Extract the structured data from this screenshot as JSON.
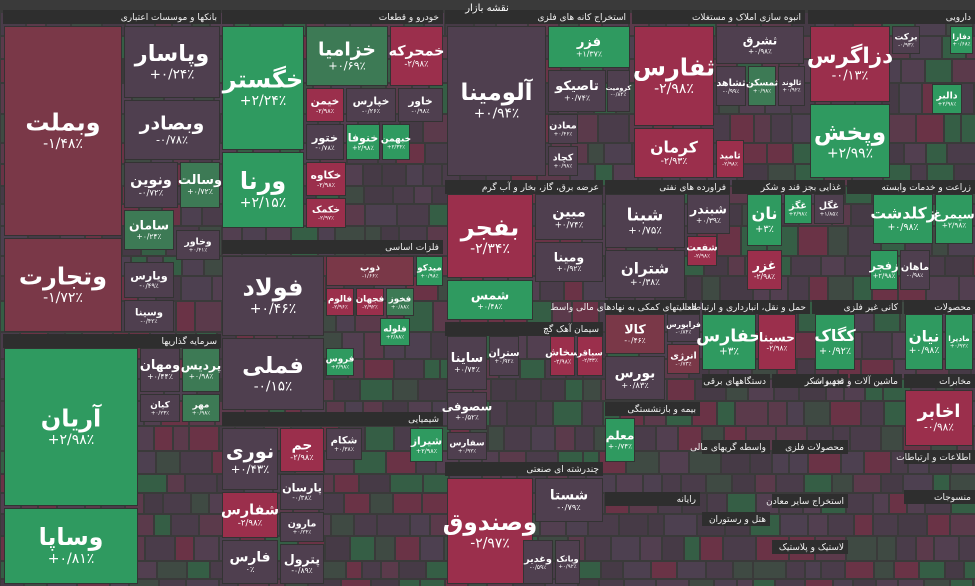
{
  "title": "نقشه بازار",
  "sectors": [
    {
      "name": "بانکها و موسسات اعتباری",
      "tiles": [
        {
          "symbol": "وبملت",
          "change": "-۱/۴۸٪",
          "color": "#7a3848"
        },
        {
          "symbol": "وتجارت",
          "change": "-۱/۷۲٪",
          "color": "#7a3848"
        },
        {
          "symbol": "وپاسار",
          "change": "+۰/۲۴٪",
          "color": "#4f3f4f"
        },
        {
          "symbol": "وبصادر",
          "change": "-۰/۷۸٪",
          "color": "#4f3f4f"
        },
        {
          "symbol": "ونوین",
          "change": "-۰/۷۲٪",
          "color": "#4f3f4f"
        },
        {
          "symbol": "وسالت",
          "change": "+۰/۷۲٪",
          "color": "#3d7a55"
        },
        {
          "symbol": "سامان",
          "change": "+۰/۲۴٪",
          "color": "#3d7a55"
        },
        {
          "symbol": "وخاور",
          "change": "+۰/۴۱٪",
          "color": "#4f3f4f"
        },
        {
          "symbol": "ویارس",
          "change": "-۰/۴۹٪",
          "color": "#4f3f4f"
        },
        {
          "symbol": "وسینا",
          "change": "-۰/۴۲٪",
          "color": "#4f3f4f"
        }
      ]
    },
    {
      "name": "سرمایه گذاریها",
      "tiles": [
        {
          "symbol": "آریان",
          "change": "+۲/۹۸٪",
          "color": "#2f9a60"
        },
        {
          "symbol": "وساپا",
          "change": "+۰/۸۱٪",
          "color": "#2f9a60"
        },
        {
          "symbol": "ومهان",
          "change": "+۰/۴۴٪",
          "color": "#4f3f4f"
        },
        {
          "symbol": "پردیس",
          "change": "+۰/۹۸٪",
          "color": "#3d7a55"
        },
        {
          "symbol": "کیان",
          "change": "+۰/۲۳٪",
          "color": "#4f3f4f"
        },
        {
          "symbol": "مهر",
          "change": "+۰/۹۸٪",
          "color": "#3d7a55"
        }
      ]
    },
    {
      "name": "خودرو و قطعات",
      "tiles": [
        {
          "symbol": "خگستر",
          "change": "+۲/۲۴٪",
          "color": "#2f9a60"
        },
        {
          "symbol": "ورنا",
          "change": "+۲/۱۵٪",
          "color": "#2f9a60"
        },
        {
          "symbol": "خزامیا",
          "change": "+۰/۶۹٪",
          "color": "#3d7a55"
        },
        {
          "symbol": "خمحرکه",
          "change": "-۲/۹۸٪",
          "color": "#9b2f4c"
        },
        {
          "symbol": "خپارس",
          "change": "-۰/۲۶٪",
          "color": "#4f3f4f"
        },
        {
          "symbol": "خیمن",
          "change": "-۲/۹۸٪",
          "color": "#9b2f4c"
        },
        {
          "symbol": "خاور",
          "change": "-۰/۹۸٪",
          "color": "#4f3f4f"
        },
        {
          "symbol": "خنوفا",
          "change": "+۲/۹۸٪",
          "color": "#2f9a60"
        },
        {
          "symbol": "خبهمن",
          "change": "+۲/۳۴٪",
          "color": "#2f9a60"
        },
        {
          "symbol": "ختور",
          "change": "-۰/۷۸٪",
          "color": "#4f3f4f"
        },
        {
          "symbol": "خکاوه",
          "change": "-۲/۹۸٪",
          "color": "#9b2f4c"
        },
        {
          "symbol": "خکمک",
          "change": "-۲/۹۷٪",
          "color": "#9b2f4c"
        }
      ]
    },
    {
      "name": "فلزات اساسی",
      "tiles": [
        {
          "symbol": "فولاد",
          "change": "+۰/۴۶٪",
          "color": "#4f3f4f"
        },
        {
          "symbol": "فملی",
          "change": "-۰/۱۵٪",
          "color": "#4f3f4f"
        },
        {
          "symbol": "ذوب",
          "change": "-۱/۶۶٪",
          "color": "#7a3848"
        },
        {
          "symbol": "میدکو",
          "change": "+۰/۹۸٪",
          "color": "#2f9a60"
        },
        {
          "symbol": "فخوز",
          "change": "+۰/۸۸٪",
          "color": "#3d7a55"
        },
        {
          "symbol": "فالوم",
          "change": "-۲/۹۶٪",
          "color": "#9b2f4c"
        },
        {
          "symbol": "فجهان",
          "change": "-۲/۹۲٪",
          "color": "#9b2f4c"
        },
        {
          "symbol": "فلوله",
          "change": "+۲/۸۸٪",
          "color": "#2f9a60"
        },
        {
          "symbol": "فروس",
          "change": "+۲/۹۸٪",
          "color": "#2f9a60"
        }
      ]
    },
    {
      "name": "شیمیایی",
      "tiles": [
        {
          "symbol": "نوری",
          "change": "+۰/۴۳٪",
          "color": "#4f3f4f"
        },
        {
          "symbol": "شفارس",
          "change": "-۲/۹۸٪",
          "color": "#9b2f4c"
        },
        {
          "symbol": "فارس",
          "change": "۰٪",
          "color": "#4f3f4f"
        },
        {
          "symbol": "جم",
          "change": "-۲/۹۸٪",
          "color": "#9b2f4c"
        },
        {
          "symbol": "پارسان",
          "change": "-۰/۳۸٪",
          "color": "#4f3f4f"
        },
        {
          "symbol": "مارون",
          "change": "+۰/۲۴٪",
          "color": "#4f3f4f"
        },
        {
          "symbol": "پترول",
          "change": "-۰/۸۹٪",
          "color": "#4f3f4f"
        },
        {
          "symbol": "شکام",
          "change": "+۰/۳۸٪",
          "color": "#4f3f4f"
        },
        {
          "symbol": "شیراز",
          "change": "+۲/۹۸٪",
          "color": "#2f9a60"
        }
      ]
    },
    {
      "name": "استخراج کانه های فلزی",
      "tiles": [
        {
          "symbol": "آلومینا",
          "change": "+۰/۹۴٪",
          "color": "#4f3f4f"
        },
        {
          "symbol": "فزر",
          "change": "+۱/۳۷٪",
          "color": "#2f9a60"
        },
        {
          "symbol": "تاصیکو",
          "change": "+۰/۷۴٪",
          "color": "#4f3f4f"
        },
        {
          "symbol": "کرومیت",
          "change": "-۰/۸۴٪",
          "color": "#4f3f4f"
        },
        {
          "symbol": "معادن",
          "change": "+۰/۴۶٪",
          "color": "#4f3f4f"
        },
        {
          "symbol": "کچاد",
          "change": "+۰/۹۸٪",
          "color": "#4f3f4f"
        }
      ]
    },
    {
      "name": "انبوه سازی املاک و مستغلات",
      "tiles": [
        {
          "symbol": "ثفارس",
          "change": "-۲/۹۸٪",
          "color": "#9b2f4c"
        },
        {
          "symbol": "کرمان",
          "change": "-۲/۹۳٪",
          "color": "#9b2f4c"
        },
        {
          "symbol": "ثشرق",
          "change": "+۰/۹۸٪",
          "color": "#4f3f4f"
        },
        {
          "symbol": "ثشاهد",
          "change": "-۰/۹۹٪",
          "color": "#4f3f4f"
        },
        {
          "symbol": "ثمسکن",
          "change": "+۰/۹۸٪",
          "color": "#3d7a55"
        },
        {
          "symbol": "ثالوند",
          "change": "+۰/۹۲٪",
          "color": "#4f3f4f"
        },
        {
          "symbol": "ثامید",
          "change": "-۲/۹۸٪",
          "color": "#9b2f4c"
        }
      ]
    },
    {
      "name": "دارویی",
      "tiles": [
        {
          "symbol": "دزاگرس",
          "change": "-۰/۱۳٪",
          "color": "#9b2f4c"
        },
        {
          "symbol": "وپخش",
          "change": "+۲/۹۹٪",
          "color": "#2f9a60"
        },
        {
          "symbol": "برکت",
          "change": "-۰/۹۳٪",
          "color": "#4f3f4f"
        },
        {
          "symbol": "دفارا",
          "change": "+۰/۶۸٪",
          "color": "#2f9a60"
        },
        {
          "symbol": "دالبر",
          "change": "+۲/۹۸٪",
          "color": "#2f9a60"
        }
      ]
    },
    {
      "name": "عرضه برق، گاز، بخار و آب گرم",
      "tiles": [
        {
          "symbol": "بفجر",
          "change": "-۲/۳۴٪",
          "color": "#9b2f4c"
        },
        {
          "symbol": "شمس",
          "change": "+۰/۴۸٪",
          "color": "#2f9a60"
        },
        {
          "symbol": "مبین",
          "change": "+۰/۷۴٪",
          "color": "#4f3f4f"
        },
        {
          "symbol": "ومینا",
          "change": "+۰/۹۲٪",
          "color": "#4f3f4f"
        }
      ]
    },
    {
      "name": "فراورده های نفتی",
      "tiles": [
        {
          "symbol": "شبنا",
          "change": "+۰/۷۵٪",
          "color": "#4f3f4f"
        },
        {
          "symbol": "شتران",
          "change": "+۰/۳۸٪",
          "color": "#4f3f4f"
        },
        {
          "symbol": "شبندر",
          "change": "+۰/۳۹٪",
          "color": "#4f3f4f"
        },
        {
          "symbol": "شفعت",
          "change": "-۲/۹۸٪",
          "color": "#9b2f4c"
        }
      ]
    },
    {
      "name": "غذایی بجز قند و شکر",
      "tiles": [
        {
          "symbol": "نان",
          "change": "+۳٪",
          "color": "#2f9a60"
        },
        {
          "symbol": "غگز",
          "change": "+۲/۹۸٪",
          "color": "#2f9a60"
        },
        {
          "symbol": "غگل",
          "change": "+۱/۸۵٪",
          "color": "#4f3f4f"
        },
        {
          "symbol": "غزر",
          "change": "-۲/۹۸٪",
          "color": "#9b2f4c"
        }
      ]
    },
    {
      "name": "زراعت و خدمات وابسته",
      "tiles": [
        {
          "symbol": "زکلدشت",
          "change": "+۰/۹۸٪",
          "color": "#2f9a60"
        },
        {
          "symbol": "سیمرغ",
          "change": "+۲/۹۸٪",
          "color": "#2f9a60"
        },
        {
          "symbol": "زفجر",
          "change": "+۲/۹۸٪",
          "color": "#2f9a60"
        },
        {
          "symbol": "ماهان",
          "change": "-۰/۹۸٪",
          "color": "#4f3f4f"
        }
      ]
    },
    {
      "name": "سیمان آهک گچ",
      "tiles": [
        {
          "symbol": "ساینا",
          "change": "+۰/۷۴٪",
          "color": "#4f3f4f"
        },
        {
          "symbol": "سصوفی",
          "change": "+۰/۵۲٪",
          "color": "#4f3f4f"
        },
        {
          "symbol": "سفارس",
          "change": "+۰/۹۲٪",
          "color": "#4f3f4f"
        },
        {
          "symbol": "ستران",
          "change": "+۰/۹۲٪",
          "color": "#4f3f4f"
        },
        {
          "symbol": "سخاش",
          "change": "-۲/۹۸٪",
          "color": "#9b2f4c"
        },
        {
          "symbol": "سباقر",
          "change": "-۲/۳۳٪",
          "color": "#9b2f4c"
        }
      ]
    },
    {
      "name": "چندرشته ای صنعتی",
      "tiles": [
        {
          "symbol": "وصندوق",
          "change": "-۲/۹۷٪",
          "color": "#9b2f4c"
        },
        {
          "symbol": "شستا",
          "change": "-۰/۷۹٪",
          "color": "#4f3f4f"
        },
        {
          "symbol": "وغدیر",
          "change": "-۰/۵۹٪",
          "color": "#4f3f4f"
        },
        {
          "symbol": "وبانک",
          "change": "+۰/۹۲٪",
          "color": "#4f3f4f"
        }
      ]
    },
    {
      "name": "فعالیتهای کمکی به نهادهای مالی واسط",
      "tiles": [
        {
          "symbol": "کالا",
          "change": "-۰/۴۶٪",
          "color": "#7a3848"
        },
        {
          "symbol": "فرابورس",
          "change": "-۰/۸۴٪",
          "color": "#4f3f4f"
        },
        {
          "symbol": "انرژی",
          "change": "-۰/۷۳٪",
          "color": "#7a3848"
        },
        {
          "symbol": "بورس",
          "change": "+۰/۸۳٪",
          "color": "#4f3f4f"
        }
      ]
    },
    {
      "name": "حمل و نقل، انبارداری و ارتباطات",
      "tiles": [
        {
          "symbol": "حفارس",
          "change": "+۳٪",
          "color": "#2f9a60"
        },
        {
          "symbol": "حسینا",
          "change": "-۲/۹۸٪",
          "color": "#9b2f4c"
        }
      ]
    },
    {
      "name": "کانی غیر فلزی",
      "tiles": [
        {
          "symbol": "کگاک",
          "change": "+۰/۹۲٪",
          "color": "#2f9a60"
        }
      ]
    },
    {
      "name": "محصولات",
      "tiles": [
        {
          "symbol": "نیان",
          "change": "+۰/۹۸٪",
          "color": "#2f9a60"
        },
        {
          "symbol": "مادیرا",
          "change": "+۰/۹۲٪",
          "color": "#2f9a60"
        }
      ]
    },
    {
      "name": "بیمه و بازنشستگی",
      "tiles": [
        {
          "symbol": "معلم",
          "change": "+۰/۷۴٪",
          "color": "#2f9a60"
        }
      ]
    },
    {
      "name": "مخابرات",
      "tiles": [
        {
          "symbol": "اخابر",
          "change": "-۰/۹۸٪",
          "color": "#9b2f4c"
        }
      ]
    },
    {
      "name": "دستگاههای برقی",
      "tiles": []
    },
    {
      "name": "قند و شکر",
      "tiles": []
    },
    {
      "name": "ماشین آلات و تجهیزات",
      "tiles": []
    },
    {
      "name": "واسطه گریهای مالی",
      "tiles": []
    },
    {
      "name": "محصولات فلزی",
      "tiles": []
    },
    {
      "name": "اطلاعات و ارتباطات",
      "tiles": []
    },
    {
      "name": "رایانه",
      "tiles": []
    },
    {
      "name": "استخراج سایر معادن",
      "tiles": []
    },
    {
      "name": "منسوجات",
      "tiles": []
    },
    {
      "name": "هتل و رستوران",
      "tiles": []
    },
    {
      "name": "لاستیک و پلاستیک",
      "tiles": []
    }
  ]
}
